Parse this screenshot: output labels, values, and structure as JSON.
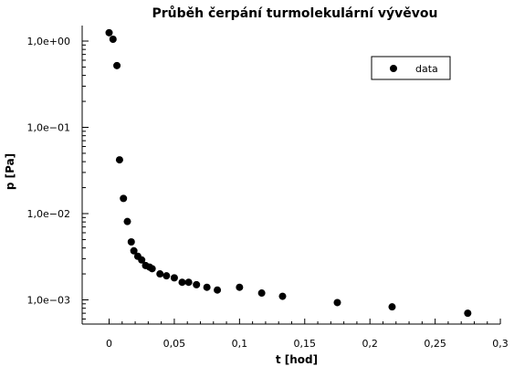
{
  "chart_data": {
    "type": "scatter",
    "title": "Průběh čerpání turmolekulární vývěvou",
    "xlabel": "t [hod]",
    "ylabel": "p [Pa]",
    "xlim": [
      -0.02,
      0.3
    ],
    "ylim": [
      0.0005,
      2.0
    ],
    "y_scale": "log",
    "x_ticks": [
      0,
      0.05,
      0.1,
      0.15,
      0.2,
      0.25,
      0.3
    ],
    "x_tick_labels": [
      "0",
      "0,05",
      "0,1",
      "0,15",
      "0,2",
      "0,25",
      "0,3"
    ],
    "y_ticks": [
      1.0,
      0.1,
      0.01,
      0.001
    ],
    "y_tick_labels": [
      "1,0e+00",
      "1,0e−01",
      "1,0e−02",
      "1,0e−03"
    ],
    "grid": false,
    "legend_position": "top-right",
    "series": [
      {
        "name": "data",
        "color": "#000000",
        "marker": "circle",
        "x": [
          0.0,
          0.003,
          0.006,
          0.008,
          0.011,
          0.014,
          0.017,
          0.019,
          0.022,
          0.025,
          0.028,
          0.031,
          0.033,
          0.039,
          0.044,
          0.05,
          0.056,
          0.061,
          0.067,
          0.075,
          0.083,
          0.1,
          0.117,
          0.133,
          0.175,
          0.217,
          0.275
        ],
        "y": [
          1.25,
          1.05,
          0.52,
          0.042,
          0.015,
          0.0081,
          0.0047,
          0.0037,
          0.0032,
          0.0029,
          0.0025,
          0.0024,
          0.0023,
          0.002,
          0.0019,
          0.0018,
          0.0016,
          0.0016,
          0.0015,
          0.0014,
          0.0013,
          0.0014,
          0.0012,
          0.0011,
          0.00093,
          0.00083,
          0.0007
        ]
      }
    ]
  }
}
